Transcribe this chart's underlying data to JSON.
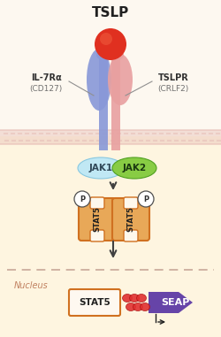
{
  "title": "TSLP",
  "bg_color": "#fdf8f0",
  "bg_bottom_color": "#faf0e0",
  "membrane_color": "#e8c0b8",
  "nucleus_line_color": "#c8a898",
  "nucleus_label": "Nucleus",
  "il7ra_label": "IL-7Rα",
  "il7ra_sub": "(CD127)",
  "tslpr_label": "TSLPR",
  "tslpr_sub": "(CRLF2)",
  "jak1_label": "JAK1",
  "jak2_label": "JAK2",
  "stat5_label": "STAT5",
  "seap_label": "SEAP",
  "jak1_color": "#c0e8f4",
  "jak1_edge": "#88c8e0",
  "jak2_color": "#88cc44",
  "jak2_edge": "#50a020",
  "stat5_fill": "#e8a858",
  "stat5_edge": "#d07020",
  "seap_color": "#6644a8",
  "tslp_ball_color": "#e03020",
  "tslp_ball_color2": "#f06040",
  "receptor_left_color": "#8898d8",
  "receptor_right_color": "#e8a0a0",
  "arrow_color": "#404040",
  "p_circle_color": "#ffffff",
  "p_circle_edge": "#505050",
  "dna_color": "#e03030",
  "promoter_color": "#202020",
  "label_color": "#303030",
  "sub_color": "#707070",
  "nucleus_text_color": "#c08060"
}
